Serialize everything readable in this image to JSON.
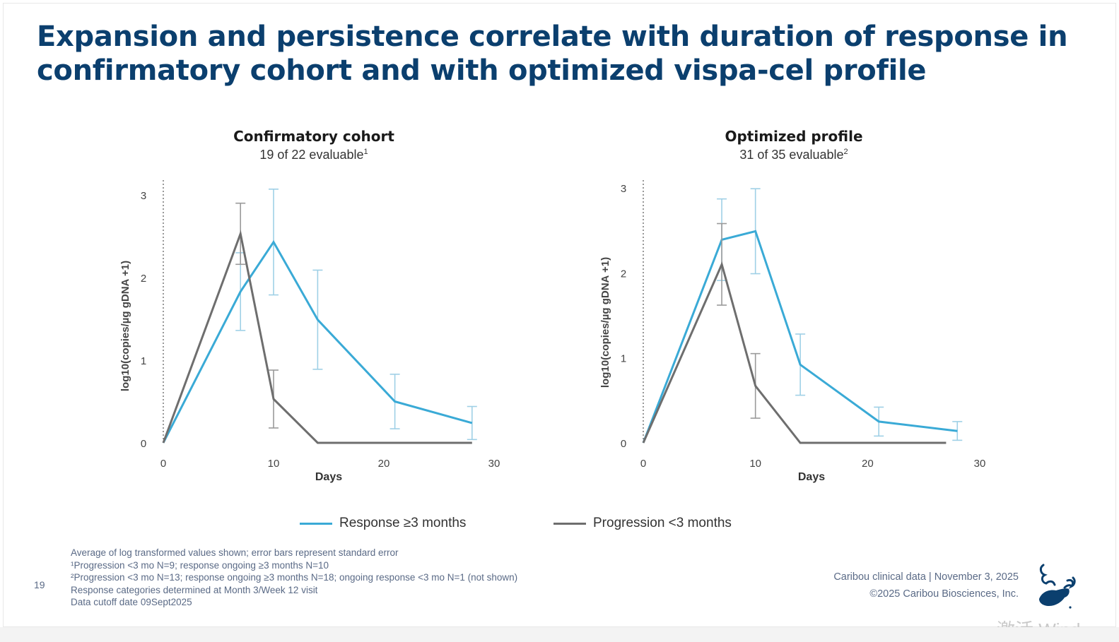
{
  "slide": {
    "title_line1": "Expansion and persistence correlate with duration of response in",
    "title_line2": "confirmatory cohort and with optimized vispa-cel profile",
    "page_number": "19",
    "credit_line1": "Caribou clinical data | November 3, 2025",
    "credit_line2": "©2025 Caribou Biosciences, Inc.",
    "watermark": "激活 Wind",
    "footnotes": [
      "Average of log transformed values shown; error bars represent standard error",
      "¹Progression <3 mo N=9; response ongoing ≥3 months N=10",
      "²Progression <3 mo N=13; response ongoing ≥3 months N=18; ongoing response <3 mo N=1 (not shown)",
      "Response categories determined at Month 3/Week 12 visit",
      "Data cutoff date 09Sept2025"
    ],
    "colors": {
      "title": "#0b3f6e",
      "response": "#3aaad6",
      "progression": "#6e6e6e",
      "errorbar_response": "#9fd0e6",
      "errorbar_progression": "#9a9a9a",
      "footnote": "#5a6a86"
    }
  },
  "legend": [
    {
      "label": "Response ≥3 months",
      "color": "#3aaad6"
    },
    {
      "label": "Progression <3 months",
      "color": "#6e6e6e"
    }
  ],
  "chart_data": [
    {
      "type": "line",
      "title": "Confirmatory cohort",
      "subtitle": "19 of 22 evaluable",
      "subtitle_sup": "1",
      "xlabel": "Days",
      "ylabel": "log10(copies/µg gDNA +1)",
      "xlim": [
        0,
        30
      ],
      "ylim": [
        0,
        3
      ],
      "xticks": [
        0,
        10,
        20,
        30
      ],
      "yticks": [
        0,
        1,
        2,
        3
      ],
      "series": [
        {
          "name": "Response ≥3 months",
          "color": "#3aaad6",
          "x": [
            0,
            7,
            10,
            14,
            21,
            28
          ],
          "y": [
            0,
            1.83,
            2.43,
            1.49,
            0.5,
            0.24
          ],
          "err": [
            0,
            0.47,
            0.64,
            0.6,
            0.33,
            0.2
          ]
        },
        {
          "name": "Progression <3 months",
          "color": "#6e6e6e",
          "x": [
            0,
            7,
            10,
            14,
            21,
            28
          ],
          "y": [
            0,
            2.53,
            0.53,
            0,
            0,
            0
          ],
          "err": [
            0,
            0.37,
            0.35,
            0,
            0,
            0
          ]
        }
      ]
    },
    {
      "type": "line",
      "title": "Optimized profile",
      "subtitle": "31 of 35 evaluable",
      "subtitle_sup": "2",
      "xlabel": "Days",
      "ylabel": "log10(copies/µg gDNA +1)",
      "xlim": [
        0,
        30
      ],
      "ylim": [
        0,
        3
      ],
      "xticks": [
        0,
        10,
        20,
        30
      ],
      "yticks": [
        0,
        1,
        2,
        3
      ],
      "series": [
        {
          "name": "Response ≥3 months",
          "color": "#3aaad6",
          "x": [
            0,
            7,
            10,
            14,
            21,
            28
          ],
          "y": [
            0,
            2.39,
            2.49,
            0.92,
            0.25,
            0.14
          ],
          "err": [
            0,
            0.48,
            0.5,
            0.36,
            0.17,
            0.11
          ]
        },
        {
          "name": "Progression <3 months",
          "color": "#6e6e6e",
          "x": [
            0,
            7,
            10,
            14,
            21,
            27
          ],
          "y": [
            0,
            2.1,
            0.67,
            0,
            0,
            0
          ],
          "err": [
            0,
            0.48,
            0.38,
            0,
            0,
            0
          ]
        }
      ]
    }
  ]
}
